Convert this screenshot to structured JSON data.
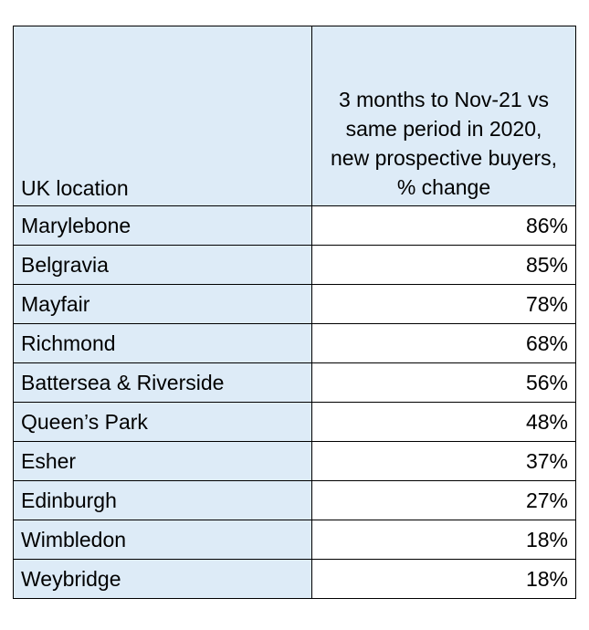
{
  "chart_data": {
    "type": "table",
    "columns": [
      "UK location",
      "3 months to Nov-21 vs same period in 2020, new prospective buyers, % change"
    ],
    "categories": [
      "Marylebone",
      "Belgravia",
      "Mayfair",
      "Richmond",
      "Battersea & Riverside",
      "Queen’s Park",
      "Esher",
      "Edinburgh",
      "Wimbledon",
      "Weybridge"
    ],
    "values": [
      86,
      85,
      78,
      68,
      56,
      48,
      37,
      27,
      18,
      18
    ],
    "value_labels": [
      "86%",
      "85%",
      "78%",
      "68%",
      "56%",
      "48%",
      "37%",
      "27%",
      "18%",
      "18%"
    ],
    "colors": {
      "header_fill": "#ddebf7",
      "location_fill": "#ddebf7",
      "value_fill": "#ffffff",
      "border": "#000000"
    }
  }
}
